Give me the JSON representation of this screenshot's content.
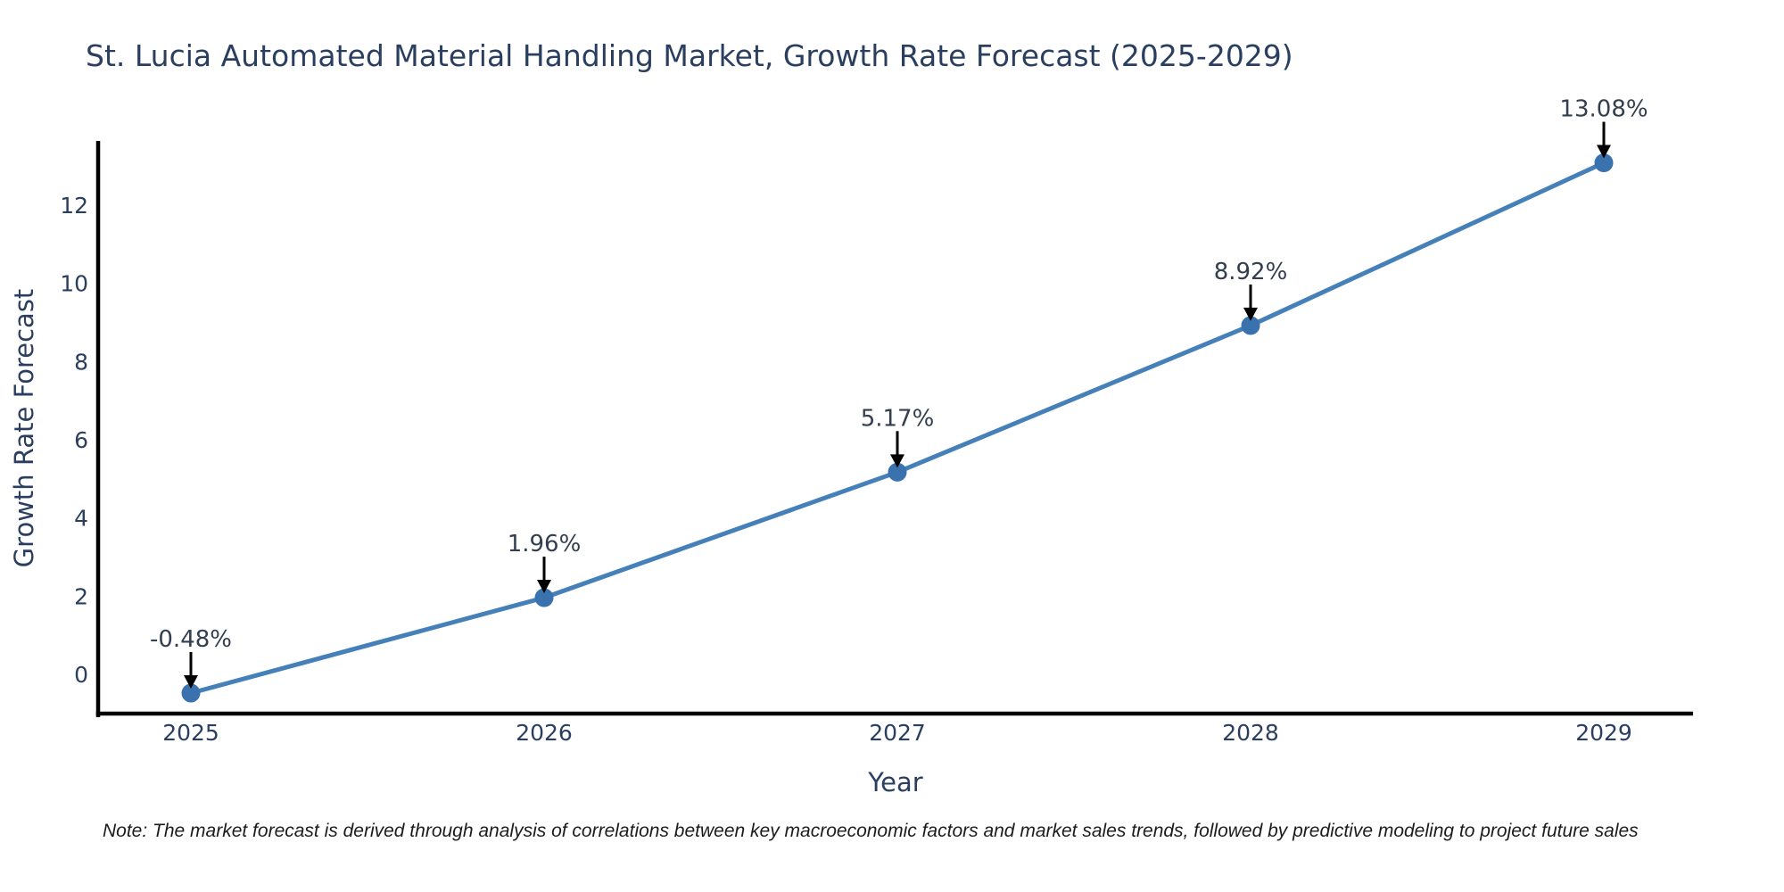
{
  "chart_data": {
    "type": "line",
    "title": "St. Lucia Automated Material Handling Market, Growth Rate Forecast (2025-2029)",
    "xlabel": "Year",
    "ylabel": "Growth Rate Forecast",
    "categories": [
      "2025",
      "2026",
      "2027",
      "2028",
      "2029"
    ],
    "series": [
      {
        "name": "Growth Rate Forecast",
        "values": [
          -0.48,
          1.96,
          5.17,
          8.92,
          13.08
        ],
        "point_labels": [
          "-0.48%",
          "1.96%",
          "5.17%",
          "8.92%",
          "13.08%"
        ]
      }
    ],
    "yticks": [
      0,
      2,
      4,
      6,
      8,
      10,
      12
    ],
    "ylim": [
      -1.05,
      13.64
    ],
    "grid": false,
    "legend": false,
    "marker_style": "circle",
    "annotation_arrows": true,
    "colors": {
      "line": "#4580b9",
      "marker": "#3a72ae",
      "text": "#2a3f5f",
      "annotation": "#333e4e",
      "arrow": "#000000",
      "spine": "#000000",
      "note": "#1c1c1c"
    }
  },
  "note": {
    "text": "Note: The market forecast is derived through analysis of correlations between key macroeconomic factors and market sales trends, followed by predictive modeling to project future sales"
  }
}
